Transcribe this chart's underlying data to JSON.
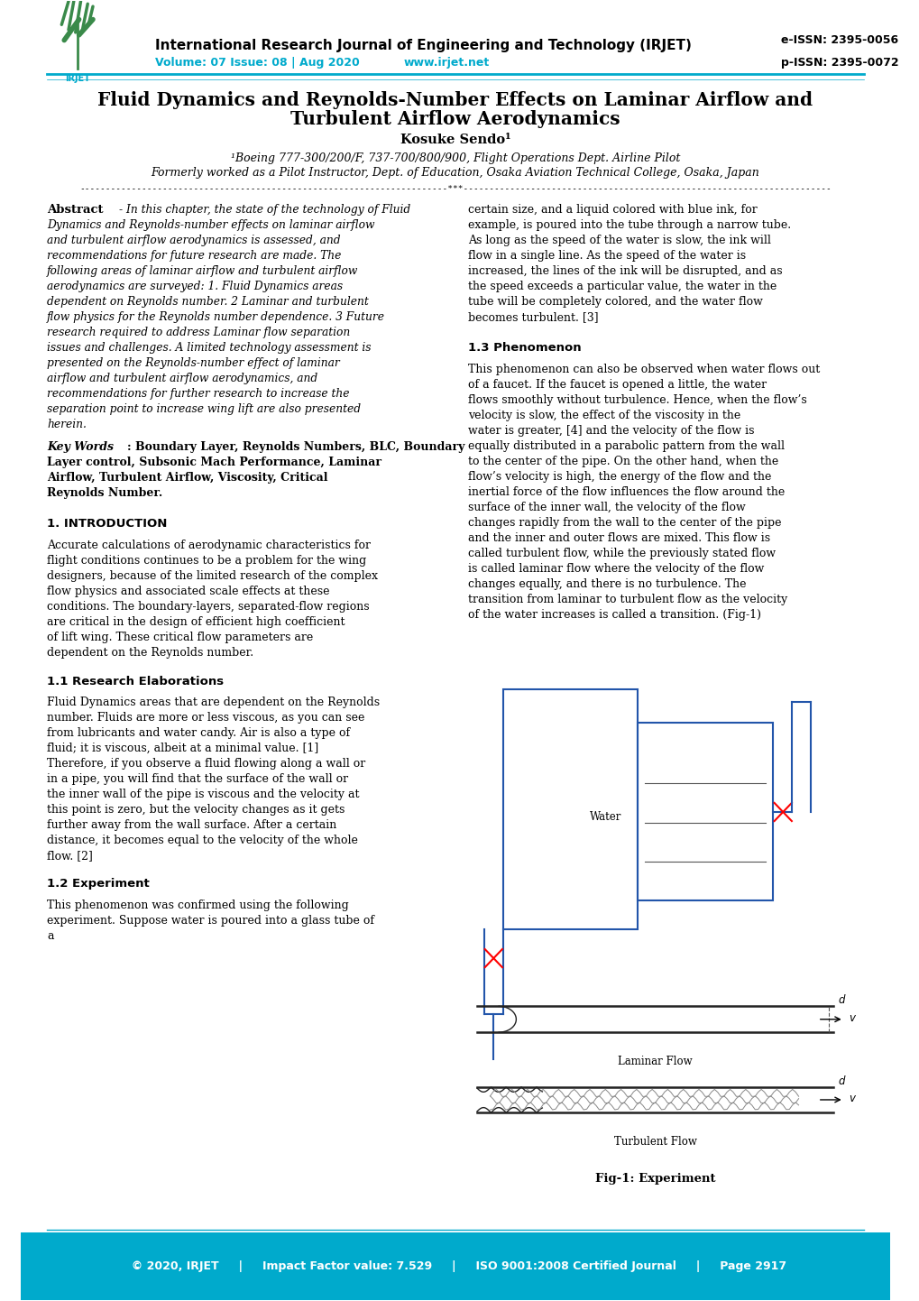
{
  "page_width": 10.2,
  "page_height": 14.42,
  "bg_color": "#ffffff",
  "header": {
    "journal_name": "International Research Journal of Engineering and Technology (IRJET)",
    "eissn": "e-ISSN: 2395-0056",
    "volume": "Volume: 07 Issue: 08 | Aug 2020",
    "website": "www.irjet.net",
    "pissn": "p-ISSN: 2395-0072",
    "header_line_color": "#00aacc"
  },
  "title": {
    "line1": "Fluid Dynamics and Reynolds-Number Effects on Laminar Airflow and",
    "line2": "Turbulent Airflow Aerodynamics"
  },
  "author": {
    "name": "Kosuke Sendo¹",
    "affiliation1": "¹Boeing 777-300/200/F, 737-700/800/900, Flight Operations Dept. Airline Pilot",
    "affiliation2": "Formerly worked as a Pilot Instructor, Dept. of Education, Osaka Aviation Technical College, Osaka, Japan"
  },
  "separator_line": "-----------------------------------------------------------------------***-----------------------------------------------------------------------",
  "abstract_label": "Abstract",
  "abstract_text": "- In this chapter, the state of the technology of Fluid Dynamics and Reynolds-number effects on laminar airflow and turbulent airflow aerodynamics is assessed, and recommendations for future research are made. The following areas of laminar airflow and turbulent airflow aerodynamics are surveyed:   1. Fluid Dynamics areas dependent on Reynolds number.  2 Laminar and turbulent flow physics for the Reynolds number dependence.  3 Future research required to address Laminar flow separation issues and challenges.  A limited technology assessment is presented on the Reynolds-number effect of laminar airflow and turbulent airflow aerodynamics, and recommendations for further research to increase the separation point to increase wing lift are also presented herein.",
  "kw_label": "Key Words",
  "kw_text": ": Boundary Layer, Reynolds Numbers, BLC, Boundary Layer control, Subsonic Mach Performance, Laminar Airflow, Turbulent Airflow, Viscosity, Critical Reynolds Number.",
  "s1_heading": "1. INTRODUCTION",
  "s1_text": "Accurate calculations of aerodynamic characteristics for flight conditions continues to be a problem for the wing designers, because of the limited research of the complex flow physics and associated scale effects at these conditions. The boundary-layers, separated-flow regions are critical in the design of efficient high coefficient of lift wing. These critical flow parameters are dependent on the Reynolds number.",
  "s11_heading": "1.1 Research Elaborations",
  "s11_text": "Fluid Dynamics areas that are dependent on the Reynolds number. Fluids are more or less viscous, as you can see from lubricants and water candy. Air is also a type of fluid; it is viscous, albeit at a minimal value. [1] Therefore, if you observe a fluid flowing along a wall or in a pipe, you will find that the surface of the wall or the inner wall of the pipe is viscous and the velocity at this point is zero, but the velocity changes as it gets further away from the wall surface. After a certain distance, it becomes equal to the velocity of the whole flow. [2]",
  "s12_heading": "1.2 Experiment",
  "s12_text": "This phenomenon was confirmed using the following experiment. Suppose water is poured into a glass tube of a",
  "right_col_para1": "certain size, and a liquid colored with blue ink, for example, is poured into the tube through a narrow tube. As long as the speed of the water is slow, the ink will flow in a single line. As the speed of the water is increased, the lines of the ink will be disrupted, and as the speed exceeds a particular value, the water in the tube will be completely colored, and the water flow becomes turbulent. [3]",
  "s13_heading": "1.3 Phenomenon",
  "s13_text": "This phenomenon can also be observed when water flows out of a faucet. If the faucet is opened a little, the water flows smoothly without turbulence. Hence, when the flow’s velocity is slow, the effect of the viscosity in the water is greater, [4] and the velocity of the flow is equally distributed in a parabolic pattern from the wall to the center of the pipe. On the other hand, when the flow’s velocity is high, the energy of the flow and the inertial force of the flow influences the flow around the surface of the inner wall, the velocity of the flow changes rapidly from the wall to the center of the pipe and the inner and outer flows are mixed. This flow is called turbulent flow, while the previously stated flow is called laminar flow where the velocity of the flow changes equally, and there is no turbulence. The transition from laminar to turbulent flow as the velocity of the water increases is called a transition. (Fig-1)",
  "fig1_caption": "Fig-1: Experiment",
  "footer_copyright": "© 2020, IRJET",
  "footer_impact": "Impact Factor value: 7.529",
  "footer_iso": "ISO 9001:2008 Certified Journal",
  "footer_page": "Page 2917",
  "footer_bg": "#00aacc",
  "footer_fg": "#ffffff"
}
